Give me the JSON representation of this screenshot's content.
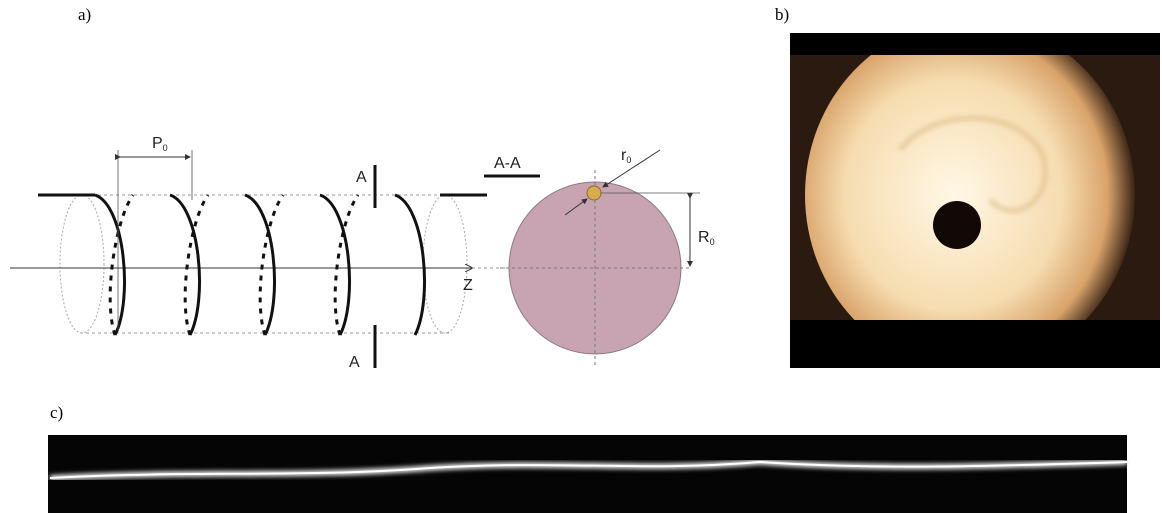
{
  "panels": {
    "a": "a)",
    "b": "b)",
    "c": "c)"
  },
  "diagram": {
    "pitch_label": {
      "text": "P",
      "sub": "0"
    },
    "section_title": "A-A",
    "section_mark_top": "A",
    "section_mark_bottom": "A",
    "axis_label": "Z",
    "wire_radius_label": {
      "text": "r",
      "sub": "0"
    },
    "helix_radius_label": {
      "text": "R",
      "sub": "0"
    }
  }
}
